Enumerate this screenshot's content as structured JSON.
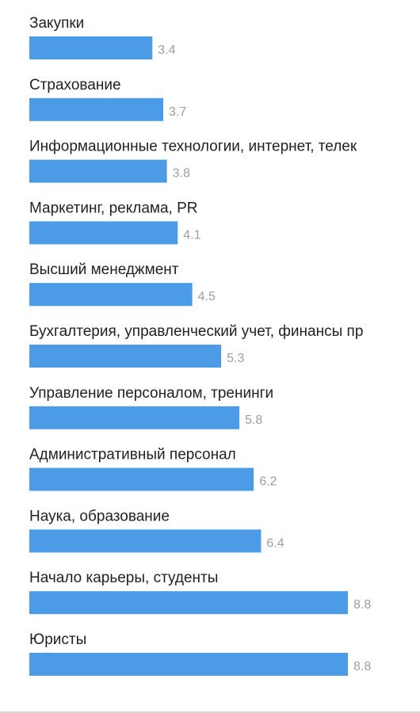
{
  "chart_data": {
    "type": "bar",
    "orientation": "horizontal",
    "categories": [
      "Закупки",
      "Страхование",
      "Информационные технологии, интернет, телек",
      "Маркетинг, реклама, PR",
      "Высший менеджмент",
      "Бухгалтерия, управленческий учет, финансы пр",
      "Управление персоналом, тренинги",
      "Административный персонал",
      "Наука, образование",
      "Начало карьеры, студенты",
      "Юристы"
    ],
    "values": [
      3.4,
      3.7,
      3.8,
      4.1,
      4.5,
      5.3,
      5.8,
      6.2,
      6.4,
      8.8,
      8.8
    ],
    "value_labels": [
      "3.4",
      "3.7",
      "3.8",
      "4.1",
      "4.5",
      "5.3",
      "5.8",
      "6.2",
      "6.4",
      "8.8",
      "8.8"
    ],
    "xlim": [
      0,
      8.8
    ],
    "grid": false,
    "legend": "none",
    "colors": {
      "bar": "#4b9be6",
      "label": "#222222",
      "value": "#9e9e9e"
    }
  }
}
